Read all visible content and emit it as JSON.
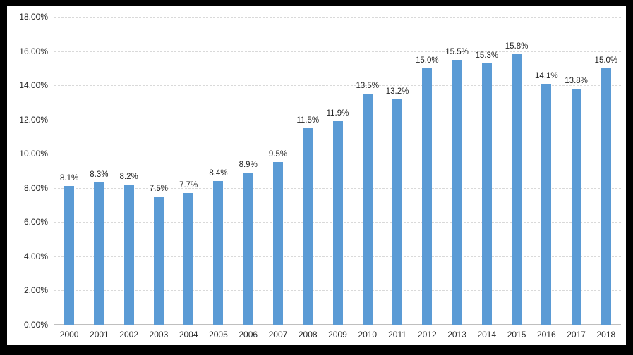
{
  "chart_data": {
    "type": "bar",
    "title": "",
    "xlabel": "",
    "ylabel": "",
    "categories": [
      "2000",
      "2001",
      "2002",
      "2003",
      "2004",
      "2005",
      "2006",
      "2007",
      "2008",
      "2009",
      "2010",
      "2011",
      "2012",
      "2013",
      "2014",
      "2015",
      "2016",
      "2017",
      "2018"
    ],
    "values": [
      8.1,
      8.3,
      8.2,
      7.5,
      7.7,
      8.4,
      8.9,
      9.5,
      11.5,
      11.9,
      13.5,
      13.2,
      15.0,
      15.5,
      15.3,
      15.8,
      14.1,
      13.8,
      15.0
    ],
    "data_labels": [
      "8.1%",
      "8.3%",
      "8.2%",
      "7.5%",
      "7.7%",
      "8.4%",
      "8.9%",
      "9.5%",
      "11.5%",
      "11.9%",
      "13.5%",
      "13.2%",
      "15.0%",
      "15.5%",
      "15.3%",
      "15.8%",
      "14.1%",
      "13.8%",
      "15.0%"
    ],
    "y_tick_labels": [
      "0.00%",
      "2.00%",
      "4.00%",
      "6.00%",
      "8.00%",
      "10.00%",
      "12.00%",
      "14.00%",
      "16.00%",
      "18.00%"
    ],
    "y_tick_values": [
      0,
      2,
      4,
      6,
      8,
      10,
      12,
      14,
      16,
      18
    ],
    "ylim": [
      0,
      18
    ],
    "grid": true,
    "legend": "none",
    "bar_color": "#5b9bd5",
    "gridline_color": "#d9d9d9",
    "axis_line_color": "#bfbfbf",
    "label_color": "#262626",
    "frame_color": "#000000"
  }
}
